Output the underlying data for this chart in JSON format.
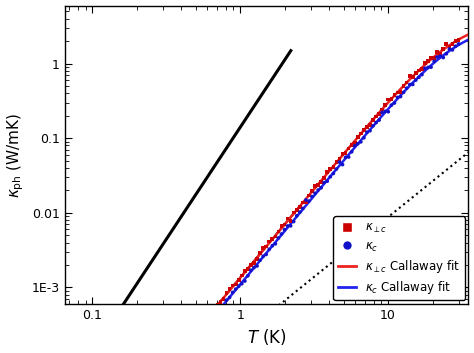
{
  "xlabel": "T (K)",
  "ylabel": "$\\kappa_{\\rm ph}$ (W/mK)",
  "xlim": [
    0.065,
    35
  ],
  "ylim": [
    0.0006,
    6
  ],
  "background_color": "#ffffff",
  "scatter_perp_color": "#cc0000",
  "scatter_para_color": "#1111cc",
  "fit_perp_color": "#ee2222",
  "fit_para_color": "#2222ee",
  "A_perp": 0.00135,
  "n_perp": 2.38,
  "kmax_perp": 4.0,
  "A_para": 0.0011,
  "n_para": 2.38,
  "kmax_para": 3.5,
  "T3_A": 0.14,
  "T3_n": 3.0,
  "T3_Tmin": 0.065,
  "T3_Tmax": 2.2,
  "dashed_A": 0.00135,
  "dashed_n": 2.38,
  "dashed_Tmin": 0.065,
  "dashed_Tmax": 2.5,
  "dotted_A": 0.00022,
  "dotted_n": 1.6,
  "dotted_Tmin": 0.065,
  "dotted_Tmax": 35,
  "T_scatter_min": 0.065,
  "T_scatter_max": 30,
  "N_scatter": 130,
  "noise_sigma": 0.045
}
